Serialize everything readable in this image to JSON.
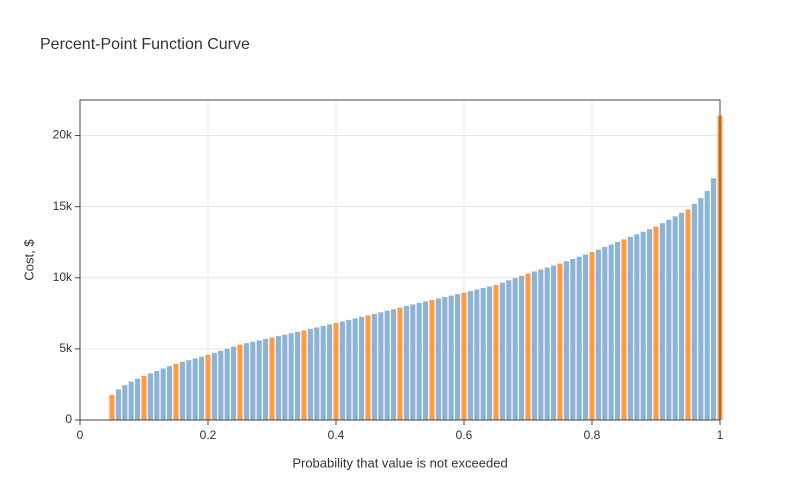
{
  "chart_data": {
    "type": "bar",
    "title": "Percent-Point Function Curve",
    "xlabel": "Probability that value is not exceeded",
    "ylabel": "Cost, $",
    "xlim": [
      0,
      1
    ],
    "ylim": [
      0,
      22500
    ],
    "xticks": [
      0,
      0.2,
      0.4,
      0.6,
      0.8,
      1
    ],
    "yticks": [
      0,
      {
        "value": 5000,
        "label": "5k"
      },
      {
        "value": 10000,
        "label": "10k"
      },
      {
        "value": 15000,
        "label": "15k"
      },
      {
        "value": 20000,
        "label": "20k"
      }
    ],
    "grid": true,
    "series": [
      {
        "color": "#8bb3d6",
        "x": [
          0.06,
          0.07,
          0.08,
          0.09,
          0.11,
          0.12,
          0.13,
          0.14,
          0.16,
          0.17,
          0.18,
          0.19,
          0.21,
          0.22,
          0.23,
          0.24,
          0.26,
          0.27,
          0.28,
          0.29,
          0.31,
          0.32,
          0.33,
          0.34,
          0.36,
          0.37,
          0.38,
          0.39,
          0.41,
          0.42,
          0.43,
          0.44,
          0.46,
          0.47,
          0.48,
          0.49,
          0.51,
          0.52,
          0.53,
          0.54,
          0.56,
          0.57,
          0.58,
          0.59,
          0.61,
          0.62,
          0.63,
          0.64,
          0.66,
          0.67,
          0.68,
          0.69,
          0.71,
          0.72,
          0.73,
          0.74,
          0.76,
          0.77,
          0.78,
          0.79,
          0.81,
          0.82,
          0.83,
          0.84,
          0.86,
          0.87,
          0.88,
          0.89,
          0.91,
          0.92,
          0.93,
          0.94,
          0.96,
          0.97,
          0.98,
          0.99
        ],
        "values": [
          2150,
          2450,
          2700,
          2900,
          3280,
          3450,
          3620,
          3790,
          4080,
          4200,
          4330,
          4450,
          4720,
          4870,
          5010,
          5160,
          5400,
          5500,
          5600,
          5700,
          5900,
          6000,
          6100,
          6200,
          6410,
          6510,
          6620,
          6720,
          6930,
          7040,
          7140,
          7250,
          7460,
          7570,
          7680,
          7790,
          8010,
          8120,
          8230,
          8340,
          8550,
          8650,
          8750,
          8850,
          9060,
          9170,
          9280,
          9390,
          9660,
          9820,
          9980,
          10140,
          10440,
          10580,
          10720,
          10860,
          11160,
          11320,
          11480,
          11640,
          11980,
          12160,
          12340,
          12520,
          12880,
          13060,
          13240,
          13420,
          13840,
          14080,
          14320,
          14560,
          15200,
          15600,
          16100,
          17000
        ]
      },
      {
        "color": "#ff9a45",
        "x": [
          0.05,
          0.1,
          0.15,
          0.2,
          0.25,
          0.3,
          0.35,
          0.4,
          0.45,
          0.5,
          0.55,
          0.6,
          0.65,
          0.7,
          0.75,
          0.8,
          0.85,
          0.9,
          0.95,
          1
        ],
        "values": [
          1760,
          3100,
          3950,
          4580,
          5300,
          5800,
          6300,
          6830,
          7350,
          7900,
          8450,
          8950,
          9500,
          10300,
          11000,
          11800,
          12700,
          13600,
          14800,
          21400
        ]
      }
    ]
  }
}
